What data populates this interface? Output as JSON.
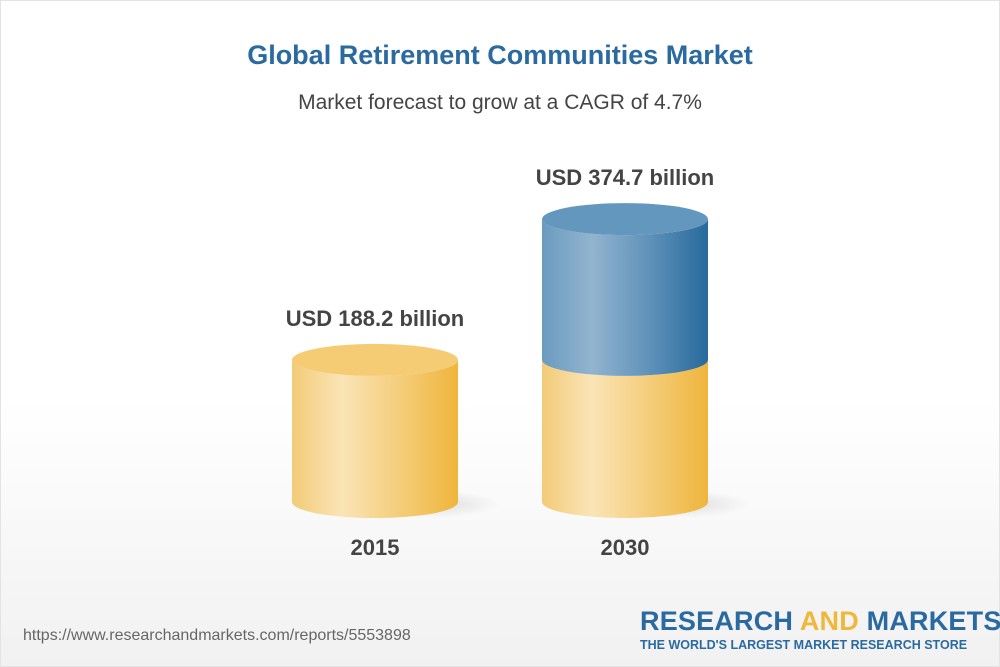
{
  "chart_data": {
    "type": "bar",
    "style": "3d-cylinder",
    "title": "Global Retirement Communities Market",
    "subtitle": "Market forecast to grow at a CAGR of 4.7%",
    "categories": [
      "2015",
      "2030"
    ],
    "values": [
      188.2,
      374.7
    ],
    "data_labels": [
      "USD 188.2 billion",
      "USD 374.7 billion"
    ],
    "unit": "USD billion",
    "grid": false,
    "colors": {
      "base": "#f2c05a",
      "growth": "#2d6b9e"
    }
  },
  "footer": {
    "url": "https://www.researchandmarkets.com/reports/5553898",
    "logo_part1": "RESEARCH ",
    "logo_part2": "AND",
    "logo_part3": " MARKETS",
    "tagline": "THE WORLD'S LARGEST MARKET RESEARCH STORE"
  }
}
